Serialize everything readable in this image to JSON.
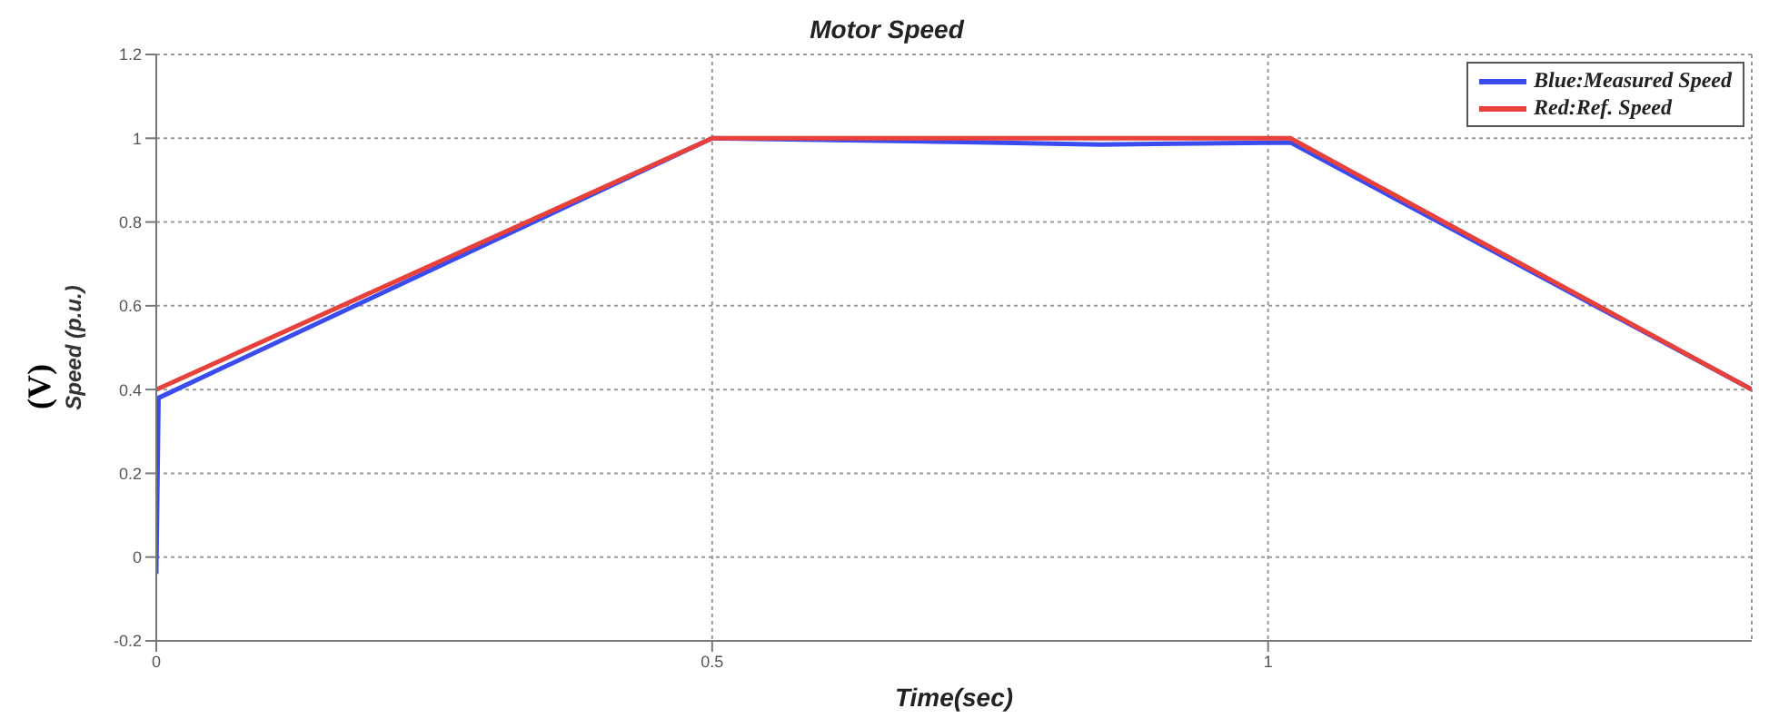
{
  "chart_data": {
    "type": "line",
    "title": "Motor Speed",
    "xlabel": "Time(sec)",
    "ylabel": "Speed (p.u.)",
    "annotations": [
      "(V)"
    ],
    "series": [
      {
        "name": "Blue:Measured Speed",
        "color": "#3a4cf0",
        "x": [
          0,
          0.002,
          0.5,
          0.75,
          0.85,
          1.02,
          1.435
        ],
        "values": [
          -0.04,
          0.38,
          1,
          0.99,
          0.985,
          0.99,
          0.4
        ]
      },
      {
        "name": "Red:Ref. Speed",
        "color": "#e8403a",
        "x": [
          0,
          0.5,
          1.02,
          1.435
        ],
        "values": [
          0.4,
          1,
          1,
          0.4
        ]
      }
    ],
    "xlim": [
      0,
      1.435
    ],
    "xticks": [
      0,
      0.5,
      1
    ],
    "ylim": [
      -0.2,
      1.2
    ],
    "yticks": [
      -0.2,
      0,
      0.2,
      0.4,
      0.6,
      0.8,
      1,
      1.2
    ],
    "grid": true,
    "legend": "top right",
    "line_style": "solid",
    "marker": "none"
  }
}
